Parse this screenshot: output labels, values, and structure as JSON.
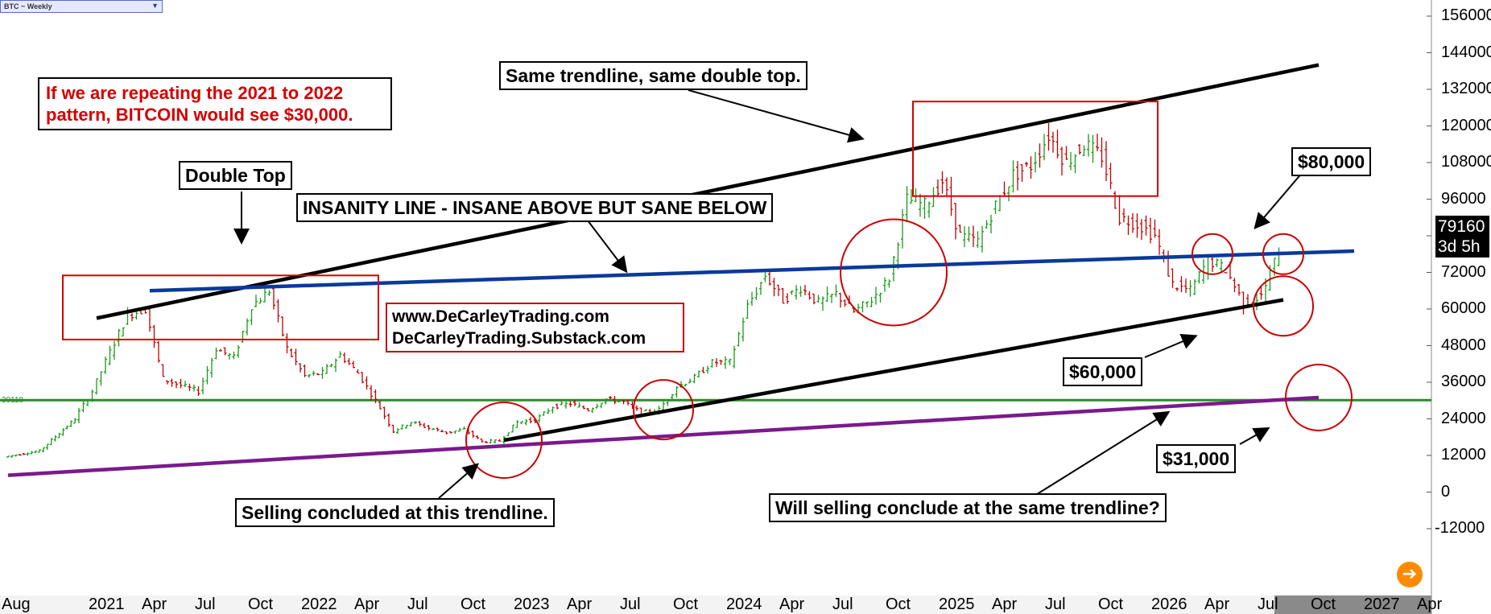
{
  "header": {
    "symbol_selector": "BTC ~ Weekly",
    "current_price": "79160",
    "countdown": "3d 5h"
  },
  "chart_data": {
    "type": "bar",
    "title": "",
    "xlabel": "",
    "ylabel": "",
    "grid": false,
    "x_ticks": [
      "Aug",
      "2021",
      "Apr",
      "Jul",
      "Oct",
      "2022",
      "Apr",
      "Jul",
      "Oct",
      "2023",
      "Apr",
      "Jul",
      "Oct",
      "2024",
      "Apr",
      "Jul",
      "Oct",
      "2025",
      "Apr",
      "Jul",
      "Oct",
      "2026",
      "Apr",
      "Jul",
      "Oct",
      "2027",
      "Apr"
    ],
    "y_ticks": [
      "156000",
      "144000",
      "132000",
      "120000",
      "108000",
      "96000",
      "84000",
      "72000",
      "60000",
      "48000",
      "36000",
      "24000",
      "12000",
      "0",
      "-12000"
    ],
    "ylim": [
      -24000,
      160000
    ],
    "horizontal_line": {
      "label": "30118",
      "value": 30118,
      "color": "#2a8c2a"
    },
    "price_series": [
      {
        "date": "2020-08",
        "close": 11500
      },
      {
        "date": "2020-10",
        "close": 13500
      },
      {
        "date": "2020-12",
        "close": 24000
      },
      {
        "date": "2021-01",
        "close": 33000
      },
      {
        "date": "2021-02",
        "close": 46000
      },
      {
        "date": "2021-03",
        "close": 58000
      },
      {
        "date": "2021-04",
        "close": 60000
      },
      {
        "date": "2021-05",
        "close": 37000
      },
      {
        "date": "2021-06",
        "close": 35000
      },
      {
        "date": "2021-07",
        "close": 33000
      },
      {
        "date": "2021-08",
        "close": 47000
      },
      {
        "date": "2021-09",
        "close": 44000
      },
      {
        "date": "2021-10",
        "close": 61000
      },
      {
        "date": "2021-11",
        "close": 66000
      },
      {
        "date": "2021-12",
        "close": 47000
      },
      {
        "date": "2022-01",
        "close": 38000
      },
      {
        "date": "2022-02",
        "close": 39000
      },
      {
        "date": "2022-03",
        "close": 45000
      },
      {
        "date": "2022-04",
        "close": 39000
      },
      {
        "date": "2022-05",
        "close": 30000
      },
      {
        "date": "2022-06",
        "close": 20000
      },
      {
        "date": "2022-07",
        "close": 23000
      },
      {
        "date": "2022-08",
        "close": 21000
      },
      {
        "date": "2022-09",
        "close": 19500
      },
      {
        "date": "2022-10",
        "close": 20500
      },
      {
        "date": "2022-11",
        "close": 16500
      },
      {
        "date": "2022-12",
        "close": 16800
      },
      {
        "date": "2023-01",
        "close": 23000
      },
      {
        "date": "2023-02",
        "close": 23500
      },
      {
        "date": "2023-03",
        "close": 28000
      },
      {
        "date": "2023-04",
        "close": 29000
      },
      {
        "date": "2023-05",
        "close": 27000
      },
      {
        "date": "2023-06",
        "close": 30500
      },
      {
        "date": "2023-07",
        "close": 29500
      },
      {
        "date": "2023-08",
        "close": 26000
      },
      {
        "date": "2023-09",
        "close": 27000
      },
      {
        "date": "2023-10",
        "close": 34500
      },
      {
        "date": "2023-11",
        "close": 37500
      },
      {
        "date": "2023-12",
        "close": 42500
      },
      {
        "date": "2024-01",
        "close": 42500
      },
      {
        "date": "2024-02",
        "close": 61000
      },
      {
        "date": "2024-03",
        "close": 71000
      },
      {
        "date": "2024-04",
        "close": 63000
      },
      {
        "date": "2024-05",
        "close": 67000
      },
      {
        "date": "2024-06",
        "close": 62000
      },
      {
        "date": "2024-07",
        "close": 65000
      },
      {
        "date": "2024-08",
        "close": 59000
      },
      {
        "date": "2024-09",
        "close": 63000
      },
      {
        "date": "2024-10",
        "close": 70000
      },
      {
        "date": "2024-11",
        "close": 96000
      },
      {
        "date": "2024-12",
        "close": 94000
      },
      {
        "date": "2025-01",
        "close": 102000
      },
      {
        "date": "2025-02",
        "close": 84000
      },
      {
        "date": "2025-03",
        "close": 82000
      },
      {
        "date": "2025-04",
        "close": 94000
      },
      {
        "date": "2025-05",
        "close": 104000
      },
      {
        "date": "2025-06",
        "close": 107000
      },
      {
        "date": "2025-07",
        "close": 117000
      },
      {
        "date": "2025-08",
        "close": 108000
      },
      {
        "date": "2025-09",
        "close": 114000
      },
      {
        "date": "2025-10",
        "close": 110000
      },
      {
        "date": "2025-11",
        "close": 90000
      },
      {
        "date": "2025-12",
        "close": 88000
      },
      {
        "date": "2026-01",
        "close": 84000
      },
      {
        "date": "2026-02",
        "close": 68000
      },
      {
        "date": "2026-03",
        "close": 66000
      },
      {
        "date": "2026-04",
        "close": 76000
      },
      {
        "date": "2026-05",
        "close": 73000
      },
      {
        "date": "2026-06",
        "close": 62000
      },
      {
        "date": "2026-07",
        "close": 64000
      },
      {
        "date": "2026-08",
        "close": 79160
      }
    ],
    "trendlines": [
      {
        "name": "upper",
        "color": "#000000",
        "points": [
          [
            "2021-01",
            57000
          ],
          [
            "2026-10",
            140000
          ]
        ]
      },
      {
        "name": "insanity",
        "color": "#0a3a9a",
        "points": [
          [
            "2021-04",
            66000
          ],
          [
            "2026-12",
            79000
          ]
        ]
      },
      {
        "name": "lower",
        "color": "#000000",
        "points": [
          [
            "2022-12",
            17000
          ],
          [
            "2026-08",
            63000
          ]
        ]
      },
      {
        "name": "support",
        "color": "#7a1a8c",
        "points": [
          [
            "2020-08",
            5500
          ],
          [
            "2026-10",
            31000
          ]
        ]
      }
    ],
    "boxes": [
      {
        "name": "double-top-2021",
        "x": [
          "2020-12",
          "2022-04"
        ],
        "y": [
          50000,
          71000
        ],
        "color": "#d40000"
      },
      {
        "name": "double-top-2025",
        "x": [
          "2024-12",
          "2025-12"
        ],
        "y": [
          97000,
          128000
        ],
        "color": "#d40000"
      }
    ],
    "circles": [
      {
        "name": "circle-2022-bottom",
        "date": "2022-12",
        "value": 17000
      },
      {
        "name": "circle-2023-retest",
        "date": "2023-09",
        "value": 27000
      },
      {
        "name": "circle-2024-breakout",
        "date": "2024-10",
        "value": 72000
      },
      {
        "name": "circle-2026-april",
        "date": "2026-04",
        "value": 78000
      },
      {
        "name": "circle-2026-current",
        "date": "2026-08",
        "value": 78000
      },
      {
        "name": "circle-2026-60k",
        "date": "2026-08",
        "value": 61000
      },
      {
        "name": "circle-31k-target",
        "date": "2026-10",
        "value": 31000
      }
    ]
  },
  "annotations": {
    "red_note": "If we are repeating the 2021 to 2022\npattern, BITCOIN would see $30,000.",
    "same_trendline": "Same trendline, same double top.",
    "double_top": "Double Top",
    "insanity_line": "INSANITY LINE - INSANE ABOVE BUT SANE BELOW",
    "website": "www.DeCarleyTrading.com\nDeCarleyTrading.Substack.com",
    "price_80k": "$80,000",
    "price_60k": "$60,000",
    "price_31k": "$31,000",
    "selling_concluded": "Selling concluded at this trendline.",
    "will_selling_conclude": "Will selling conclude at the same trendline?"
  },
  "colors": {
    "up_bar": "#1a9a1a",
    "down_bar": "#c00000",
    "accent": "#ff8a00"
  }
}
